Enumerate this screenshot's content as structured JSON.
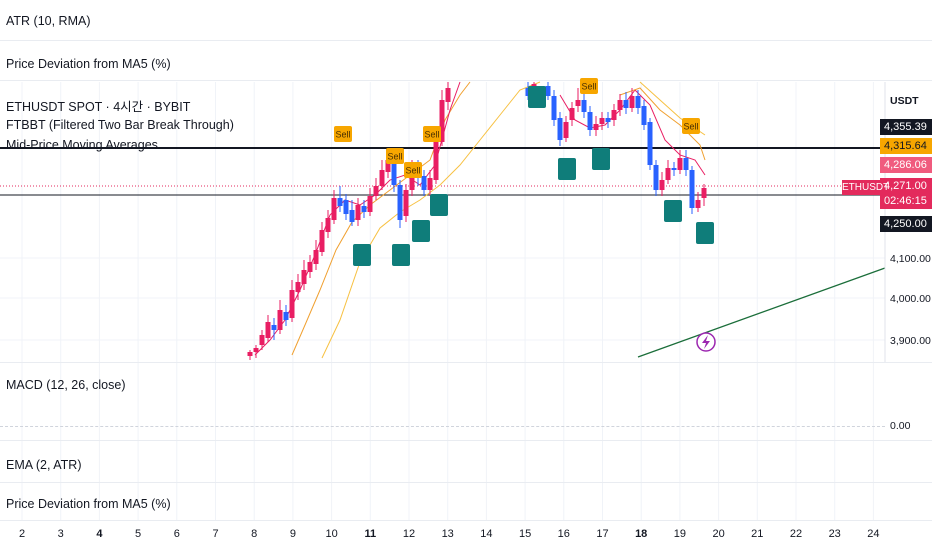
{
  "panes": {
    "atr": "ATR (10, RMA)",
    "price_dev_top": "Price Deviation from MA5 (%)",
    "symbol": "ETHUSDT SPOT · 4시간 · BYBIT",
    "ftbbt": "FTBBT (Filtered Two Bar Break Through)",
    "mid_price": "Mid-Price Moving Averages",
    "macd": "MACD (12, 26, close)",
    "ema": "EMA (2, ATR)",
    "price_dev_bottom": "Price Deviation from MA5 (%)"
  },
  "axis": {
    "currency": "USDT",
    "price_ticks": [
      "4,100.00",
      "4,000.00",
      "3,900.00"
    ],
    "macd_zero": "0.00",
    "tags": [
      {
        "text": "4,355.39",
        "bg": "#131722",
        "fg": "#ffffff",
        "key": "t1"
      },
      {
        "text": "4,315.64",
        "bg": "#f7a600",
        "fg": "#131722",
        "key": "t2"
      },
      {
        "text": "4,286.06",
        "bg": "#f05b7e",
        "fg": "#ffffff",
        "key": "t3"
      },
      {
        "text": "4,271.00",
        "bg": "#e32a5c",
        "fg": "#ffffff",
        "key": "t4"
      },
      {
        "text": "02:46:15",
        "bg": "#e32a5c",
        "fg": "#ffffff",
        "key": "t5"
      },
      {
        "text": "4,250.00",
        "bg": "#131722",
        "fg": "#ffffff",
        "key": "t6"
      }
    ],
    "symbol_tag": "ETHUSDT"
  },
  "dates": [
    "2",
    "3",
    "4",
    "5",
    "6",
    "7",
    "8",
    "9",
    "10",
    "11",
    "12",
    "13",
    "14",
    "15",
    "16",
    "17",
    "18",
    "19",
    "20",
    "21",
    "22",
    "23",
    "24"
  ],
  "dates_bold": [
    "4",
    "11",
    "18"
  ],
  "signals": {
    "sell": "Sell"
  },
  "colors": {
    "up": "#e91e63",
    "down": "#2962ff",
    "ma_fast": "#e91e63",
    "ma_slow": "#f7c142",
    "ma_mid": "#f0a030",
    "trend": "#1b6e3a",
    "buy": "#0f7d7a",
    "sell": "#f7a600"
  }
}
